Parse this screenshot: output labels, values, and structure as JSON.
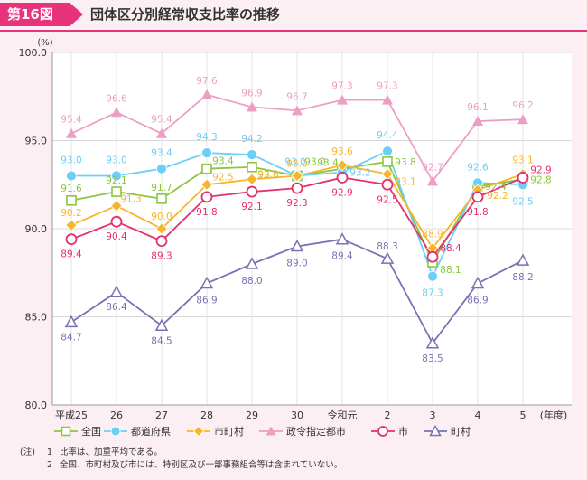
{
  "figure": {
    "badge": "第16図",
    "title": "団体区分別経常収支比率の推移"
  },
  "chart_data": {
    "type": "line",
    "title": "団体区分別経常収支比率の推移",
    "y_unit": "(%)",
    "x_unit": "(年度)",
    "ylim": [
      80.0,
      100.0
    ],
    "y_ticks": [
      "80.0",
      "85.0",
      "90.0",
      "95.0",
      "100.0"
    ],
    "categories": [
      "平成25",
      "26",
      "27",
      "28",
      "29",
      "30",
      "令和元",
      "2",
      "3",
      "4",
      "5"
    ],
    "series": [
      {
        "name": "全国",
        "color": "#8cc63f",
        "marker": "square",
        "values": [
          91.6,
          92.1,
          91.7,
          93.4,
          93.5,
          93.0,
          93.4,
          93.8,
          88.1,
          92.4,
          92.8
        ]
      },
      {
        "name": "都道府県",
        "color": "#6ccff6",
        "marker": "circle-filled",
        "values": [
          93.0,
          93.0,
          93.4,
          94.3,
          94.2,
          93.0,
          93.2,
          94.4,
          87.3,
          92.6,
          92.5
        ]
      },
      {
        "name": "市町村",
        "color": "#f7b52c",
        "marker": "diamond",
        "values": [
          90.2,
          91.3,
          90.0,
          92.5,
          92.8,
          93.0,
          93.6,
          93.1,
          88.9,
          92.2,
          93.1
        ]
      },
      {
        "name": "政令指定都市",
        "color": "#ec9fc4",
        "marker": "triangle-filled",
        "values": [
          95.4,
          96.6,
          95.4,
          97.6,
          96.9,
          96.7,
          97.3,
          97.3,
          92.7,
          96.1,
          96.2
        ]
      },
      {
        "name": "市",
        "color": "#e5306e",
        "marker": "circle-open",
        "values": [
          89.4,
          90.4,
          89.3,
          91.8,
          92.1,
          92.3,
          92.9,
          92.5,
          88.4,
          91.8,
          92.9
        ]
      },
      {
        "name": "町村",
        "color": "#7872b4",
        "marker": "triangle-open",
        "values": [
          84.7,
          86.4,
          84.5,
          86.9,
          88.0,
          89.0,
          89.4,
          88.3,
          83.5,
          86.9,
          88.2
        ]
      }
    ]
  },
  "notes": {
    "label": "(注)",
    "items": [
      {
        "num": "1",
        "text": "比率は、加重平均である。"
      },
      {
        "num": "2",
        "text": "全国、市町村及び市には、特別区及び一部事務組合等は含まれていない。"
      }
    ]
  }
}
